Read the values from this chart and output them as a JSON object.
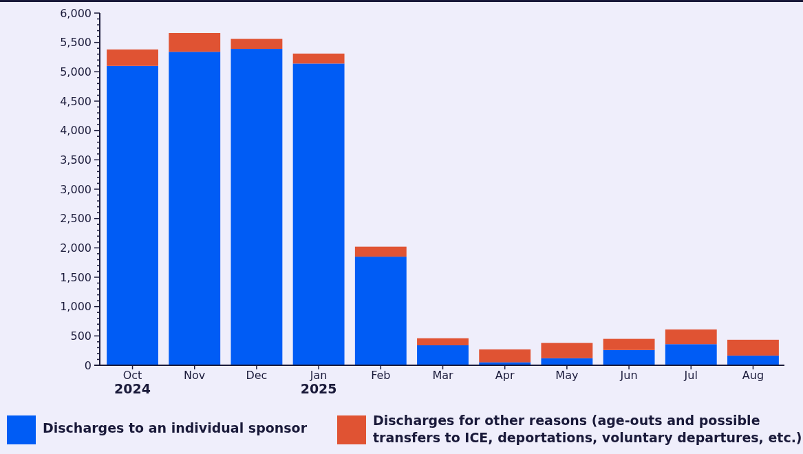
{
  "chart_data": {
    "type": "bar",
    "stacked": true,
    "categories": [
      "Oct\n2024",
      "Nov",
      "Dec",
      "Jan\n2025",
      "Feb",
      "Mar",
      "Apr",
      "May",
      "Jun",
      "Jul",
      "Aug"
    ],
    "series": [
      {
        "name": "Discharges to an individual sponsor",
        "color": "#005cf5",
        "values": [
          5100,
          5340,
          5390,
          5140,
          1850,
          340,
          50,
          120,
          260,
          360,
          165
        ]
      },
      {
        "name": "Discharges for other reasons (age-outs and possible transfers to ICE, deportations, voluntary departures, etc.)",
        "color": "#e05333",
        "values": [
          280,
          320,
          170,
          170,
          170,
          120,
          220,
          260,
          190,
          250,
          270
        ]
      }
    ],
    "ylim": [
      0,
      6000
    ],
    "yticks": [
      0,
      {
        "value": 100,
        "label": null
      },
      {
        "value": 200,
        "label": null
      },
      {
        "value": 300,
        "label": null
      },
      {
        "value": 400,
        "label": null
      },
      {
        "value": 500,
        "label": "500"
      },
      {
        "value": 600,
        "label": null
      },
      {
        "value": 700,
        "label": null
      },
      {
        "value": 800,
        "label": null
      },
      {
        "value": 900,
        "label": null
      },
      {
        "value": 1000,
        "label": "1,000"
      },
      {
        "value": 1100,
        "label": null
      },
      {
        "value": 1200,
        "label": null
      },
      {
        "value": 1300,
        "label": null
      },
      {
        "value": 1400,
        "label": null
      },
      {
        "value": 1500,
        "label": "1,500"
      },
      {
        "value": 1600,
        "label": null
      },
      {
        "value": 1700,
        "label": null
      },
      {
        "value": 1800,
        "label": null
      },
      {
        "value": 1900,
        "label": null
      },
      {
        "value": 2000,
        "label": "2,000"
      },
      {
        "value": 2100,
        "label": null
      },
      {
        "value": 2200,
        "label": null
      },
      {
        "value": 2300,
        "label": null
      },
      {
        "value": 2400,
        "label": null
      },
      {
        "value": 2500,
        "label": "2,500"
      },
      {
        "value": 2600,
        "label": null
      },
      {
        "value": 2700,
        "label": null
      },
      {
        "value": 2800,
        "label": null
      },
      {
        "value": 2900,
        "label": null
      },
      {
        "value": 3000,
        "label": "3,000"
      },
      {
        "value": 3100,
        "label": null
      },
      {
        "value": 3200,
        "label": null
      },
      {
        "value": 3300,
        "label": null
      },
      {
        "value": 3400,
        "label": null
      },
      {
        "value": 3500,
        "label": "3,500"
      },
      {
        "value": 3600,
        "label": null
      },
      {
        "value": 3700,
        "label": null
      },
      {
        "value": 3800,
        "label": null
      },
      {
        "value": 3900,
        "label": null
      },
      {
        "value": 4000,
        "label": "4,000"
      },
      {
        "value": 4100,
        "label": null
      },
      {
        "value": 4200,
        "label": null
      },
      {
        "value": 4300,
        "label": null
      },
      {
        "value": 4400,
        "label": null
      },
      {
        "value": 4500,
        "label": "4,500"
      },
      {
        "value": 4600,
        "label": null
      },
      {
        "value": 4700,
        "label": null
      },
      {
        "value": 4800,
        "label": null
      },
      {
        "value": 4900,
        "label": null
      },
      {
        "value": 5000,
        "label": "5,000"
      },
      {
        "value": 5100,
        "label": null
      },
      {
        "value": 5200,
        "label": null
      },
      {
        "value": 5300,
        "label": null
      },
      {
        "value": 5400,
        "label": null
      },
      {
        "value": 5500,
        "label": "5,500"
      },
      {
        "value": 5600,
        "label": null
      },
      {
        "value": 5700,
        "label": null
      },
      {
        "value": 5800,
        "label": null
      },
      {
        "value": 5900,
        "label": null
      },
      {
        "value": 6000,
        "label": "6,000"
      }
    ],
    "grid": false,
    "legend": "bottom"
  }
}
